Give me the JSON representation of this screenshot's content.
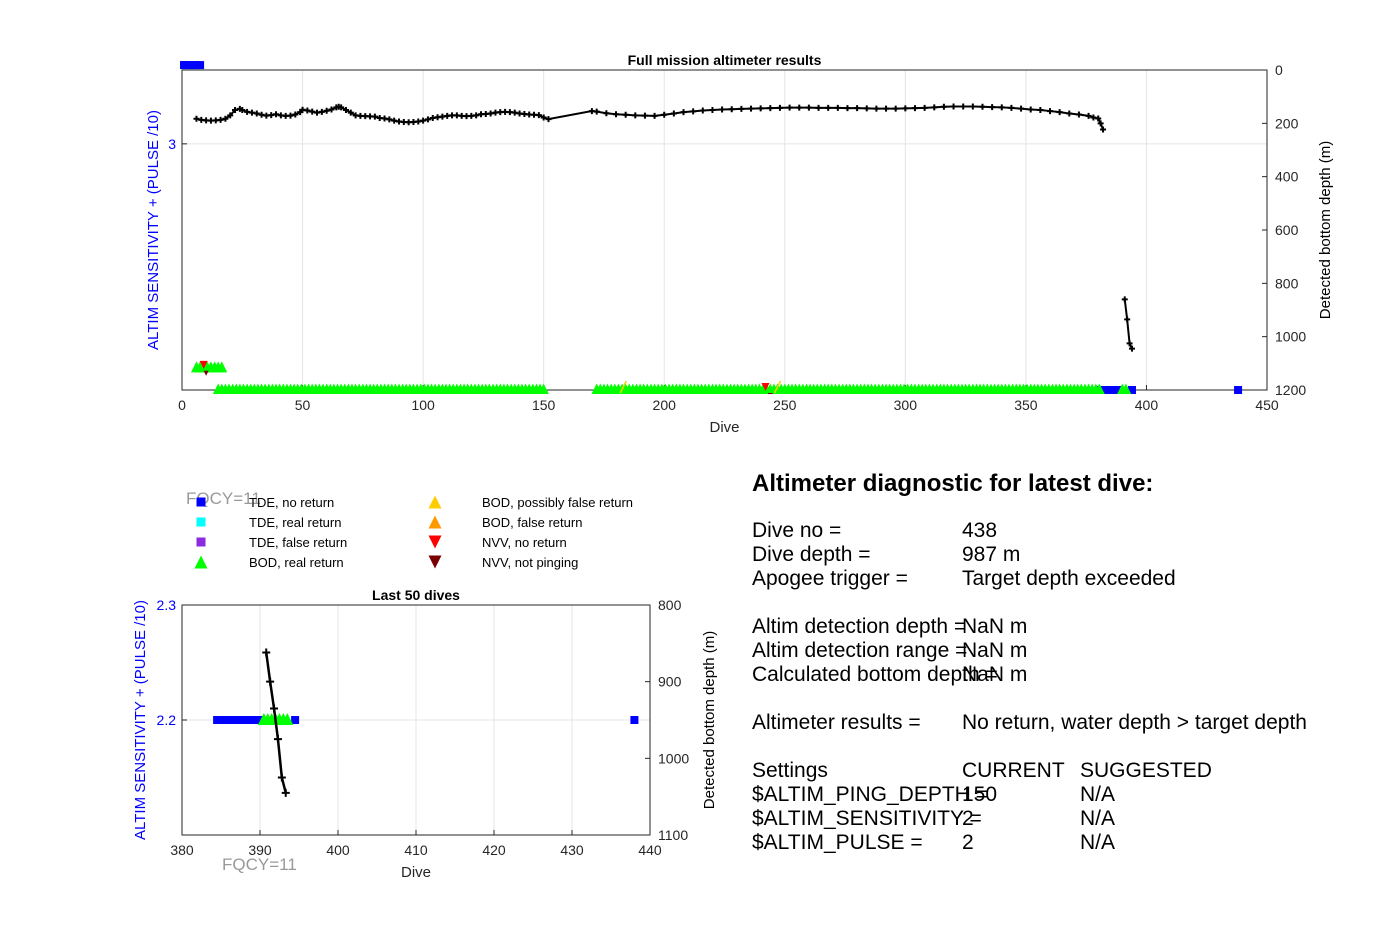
{
  "colors": {
    "tde_no_return": "#0000ff",
    "tde_real_return": "#00ffff",
    "tde_false_return": "#8a2be2",
    "bod_real_return": "#00ff00",
    "bod_possibly_false_return": "#ffcc00",
    "bod_false_return": "#ff9900",
    "nvv_no_return": "#ff0000",
    "nvv_not_pinging": "#7a0000",
    "bottom_depth": "#000000",
    "left_axis": "#0000ff",
    "fqcy_text": "#999999"
  },
  "fqcy_label": "FQCY=11",
  "legend": [
    {
      "label": "TDE, no return",
      "marker": "square",
      "color_key": "tde_no_return"
    },
    {
      "label": "TDE, real return",
      "marker": "square",
      "color_key": "tde_real_return"
    },
    {
      "label": "TDE, false return",
      "marker": "square",
      "color_key": "tde_false_return"
    },
    {
      "label": "BOD, real return",
      "marker": "triangle-up",
      "color_key": "bod_real_return"
    },
    {
      "label": "BOD, possibly false return",
      "marker": "triangle-up",
      "color_key": "bod_possibly_false_return"
    },
    {
      "label": "BOD, false return",
      "marker": "triangle-up",
      "color_key": "bod_false_return"
    },
    {
      "label": "NVV, no return",
      "marker": "triangle-down",
      "color_key": "nvv_no_return"
    },
    {
      "label": "NVV, not pinging",
      "marker": "triangle-down",
      "color_key": "nvv_not_pinging"
    }
  ],
  "chart_data": [
    {
      "type": "scatter",
      "title": "Full mission altimeter results",
      "xlabel": "Dive",
      "ylabel_left": "ALTIM SENSITIVITY + (PULSE /10)",
      "ylabel_right": "Detected bottom depth (m)",
      "xlim": [
        0,
        450
      ],
      "xticks": [
        0,
        50,
        100,
        150,
        200,
        250,
        300,
        350,
        400,
        450
      ],
      "ylim_left": [
        2.0,
        3.3
      ],
      "yticks_left": [
        3
      ],
      "ylim_right": [
        1200,
        0
      ],
      "yticks_right": [
        0,
        200,
        400,
        600,
        800,
        1000,
        1200
      ],
      "grid": true,
      "tde_no_return_runs": [
        {
          "x_start": 0,
          "x_end": 8,
          "y": 3.32
        },
        {
          "x_start": 381,
          "x_end": 389,
          "y": 2.0
        },
        {
          "x_start": 394,
          "x_end": 395,
          "y": 2.0
        },
        {
          "x_start": 438,
          "x_end": 439,
          "y": 2.0
        }
      ],
      "bod_real_return_runs": [
        {
          "x_start": 6,
          "x_end": 17,
          "y": 2.09
        },
        {
          "x_start": 15,
          "x_end": 151,
          "y": 2.0
        },
        {
          "x_start": 172,
          "x_end": 381,
          "y": 2.0
        },
        {
          "x_start": 390,
          "x_end": 392,
          "y": 2.0
        }
      ],
      "bod_possibly_false_return_points": [
        {
          "x": 183,
          "y": 2.0
        },
        {
          "x": 247,
          "y": 2.0
        }
      ],
      "nvv_no_return_points": [
        {
          "x": 9,
          "y": 2.09
        },
        {
          "x": 242,
          "y": 2.0
        }
      ],
      "nvv_not_pinging_points": [
        {
          "x": 10,
          "y": 2.08
        },
        {
          "x": 244,
          "y": 1.99
        }
      ],
      "bottom_depth_segments": [
        {
          "x": [
            6,
            8,
            10,
            12,
            14,
            16,
            18,
            20,
            22,
            24,
            25,
            27,
            29,
            31,
            33,
            35,
            37,
            39,
            41,
            43,
            45,
            47,
            49,
            50,
            52,
            54,
            56,
            58,
            60,
            62,
            64,
            65,
            66,
            68,
            70,
            72,
            74,
            76,
            78,
            80,
            82,
            84,
            86,
            88,
            90,
            92,
            94,
            96,
            98,
            100,
            102,
            104,
            106,
            108,
            110,
            112,
            114,
            116,
            118,
            120,
            122,
            124,
            126,
            128,
            130,
            132,
            134,
            136,
            138,
            140,
            142,
            144,
            146,
            148,
            150,
            152,
            170,
            172,
            176,
            180,
            184,
            188,
            192,
            196,
            200,
            204,
            208,
            212,
            216,
            220,
            224,
            228,
            232,
            236,
            240,
            244,
            248,
            252,
            256,
            260,
            264,
            268,
            272,
            276,
            280,
            284,
            288,
            292,
            296,
            300,
            304,
            308,
            312,
            316,
            320,
            324,
            328,
            332,
            336,
            340,
            344,
            348,
            352,
            356,
            360,
            364,
            368,
            372,
            376,
            378,
            380,
            381,
            382
          ],
          "y": [
            183,
            187,
            189,
            190,
            189,
            187,
            183,
            170,
            150,
            146,
            150,
            157,
            160,
            163,
            168,
            171,
            169,
            166,
            170,
            172,
            171,
            167,
            158,
            149,
            152,
            156,
            160,
            157,
            153,
            148,
            140,
            138,
            140,
            150,
            160,
            170,
            172,
            173,
            174,
            175,
            180,
            182,
            185,
            190,
            193,
            195,
            196,
            195,
            193,
            190,
            185,
            180,
            177,
            175,
            172,
            170,
            170,
            172,
            173,
            172,
            170,
            166,
            165,
            163,
            160,
            158,
            157,
            158,
            160,
            163,
            165,
            167,
            168,
            169,
            178,
            184,
            154,
            156,
            162,
            166,
            168,
            170,
            171,
            172,
            168,
            163,
            158,
            155,
            152,
            150,
            148,
            147,
            146,
            145,
            144,
            143,
            142,
            141,
            141,
            141,
            142,
            142,
            142,
            143,
            143,
            144,
            145,
            145,
            145,
            144,
            143,
            142,
            140,
            138,
            137,
            137,
            137,
            138,
            139,
            140,
            142,
            145,
            148,
            150,
            154,
            158,
            163,
            167,
            172,
            178,
            182,
            200,
            223
          ]
        },
        {
          "x": [
            391,
            392,
            393,
            394
          ],
          "y": [
            860,
            935,
            1025,
            1045
          ]
        }
      ]
    },
    {
      "type": "scatter",
      "title": "Last 50 dives",
      "xlabel": "Dive",
      "ylabel_left": "ALTIM SENSITIVITY + (PULSE /10)",
      "ylabel_right": "Detected bottom depth (m)",
      "xlim": [
        380,
        440
      ],
      "xticks": [
        380,
        390,
        400,
        410,
        420,
        430,
        440
      ],
      "ylim_left": [
        2.1,
        2.3
      ],
      "yticks_left": [
        2.2,
        2.3
      ],
      "ylim_right": [
        1100,
        800
      ],
      "yticks_right": [
        800,
        900,
        1000,
        1100
      ],
      "grid": true,
      "tde_no_return_runs": [
        {
          "x_start": 384.5,
          "x_end": 390,
          "y": 2.2
        },
        {
          "x_start": 394.5,
          "x_end": 394.5,
          "y": 2.2
        },
        {
          "x_start": 438,
          "x_end": 438,
          "y": 2.2
        }
      ],
      "bod_real_return_runs": [
        {
          "x_start": 390.5,
          "x_end": 393.5,
          "y": 2.2
        }
      ],
      "bottom_depth_segments": [
        {
          "x": [
            390.8,
            391.3,
            391.8,
            392.3,
            392.8,
            393.3
          ],
          "y": [
            862,
            900,
            935,
            975,
            1025,
            1045
          ]
        }
      ]
    }
  ],
  "diagnostic": {
    "title": "Altimeter diagnostic for latest dive:",
    "rows": [
      {
        "label": "Dive no =",
        "value": "438"
      },
      {
        "label": "Dive depth =",
        "value": "987 m"
      },
      {
        "label": "Apogee trigger =",
        "value": "Target depth exceeded"
      },
      {
        "label": "Altim detection depth =",
        "value": "NaN m"
      },
      {
        "label": "Altim detection range =",
        "value": "NaN m"
      },
      {
        "label": "Calculated bottom depth =",
        "value": "NaN m"
      },
      {
        "label": "Altimeter results =",
        "value": "No return, water depth > target depth"
      }
    ],
    "settings": {
      "label": "Settings",
      "current_header": "CURRENT",
      "suggested_header": "SUGGESTED",
      "items": [
        {
          "label": "$ALTIM_PING_DEPTH =",
          "current": "150",
          "suggested": "N/A"
        },
        {
          "label": "$ALTIM_SENSITIVITY =",
          "current": "2",
          "suggested": "N/A"
        },
        {
          "label": "$ALTIM_PULSE =",
          "current": "2",
          "suggested": "N/A"
        }
      ]
    }
  }
}
